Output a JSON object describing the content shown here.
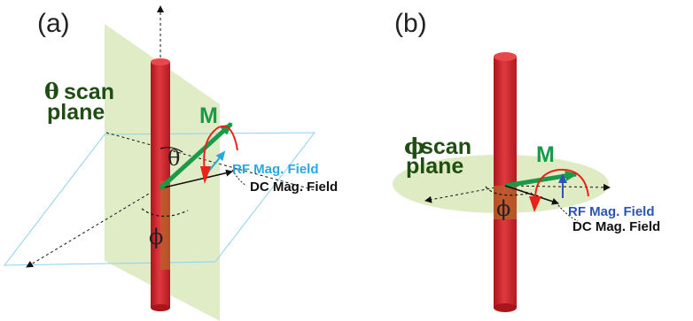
{
  "panel_a": {
    "label": "(a)",
    "plane_label_symbol": "θ",
    "plane_label_word1": "scan",
    "plane_label_word2": "plane",
    "vector_label": "M",
    "theta_symbol": "θ",
    "phi_symbol": "ϕ",
    "rf_label": "RF Mag. Field",
    "dc_label": "DC Mag. Field"
  },
  "panel_b": {
    "label": "(b)",
    "plane_label_symbol": "ϕ",
    "plane_label_word1": "scan",
    "plane_label_word2": "plane",
    "vector_label": "M",
    "phi_symbol": "ϕ",
    "rf_label": "RF Mag. Field",
    "dc_label": "DC Mag. Field"
  },
  "colors": {
    "cylinder": "#cc2229",
    "plane": "#d9e8b8",
    "m_vector": "#1a9a48",
    "rf_a": "#29a8e0",
    "rf_b": "#2b55b4",
    "rotation_arrow": "#e8231c",
    "plane_text": "#1f4d14"
  }
}
